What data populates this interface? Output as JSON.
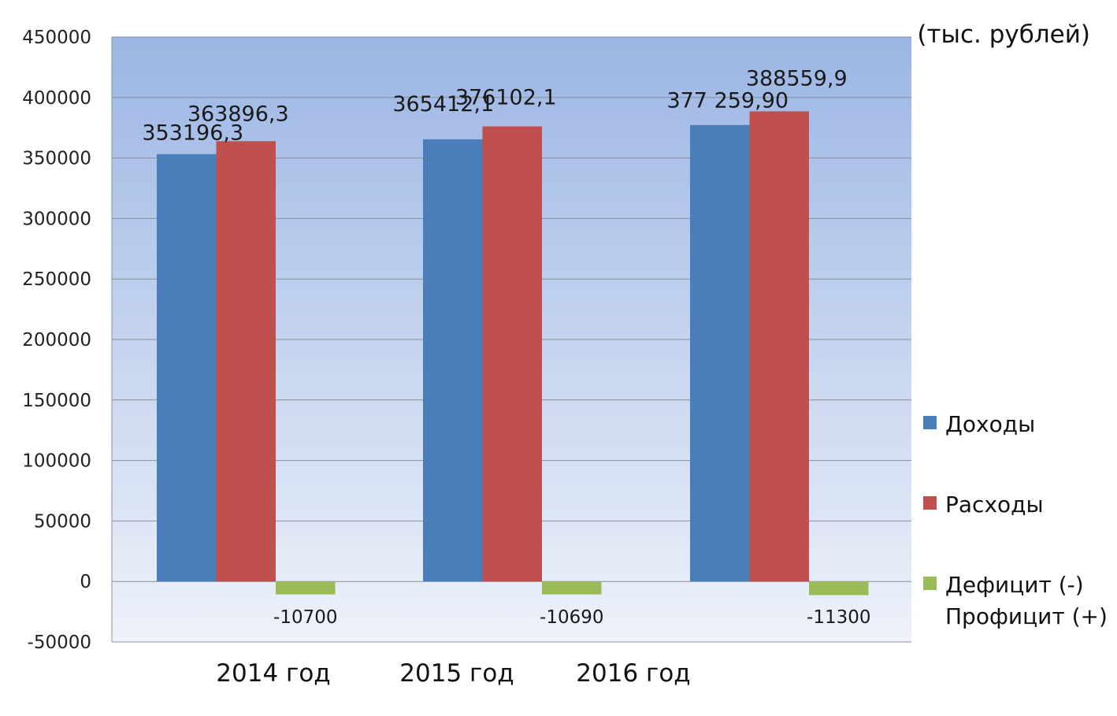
{
  "chart_data": {
    "type": "bar",
    "unit_label": "(тыс. рублей)",
    "categories": [
      "2014 год",
      "2015 год",
      "2016 год"
    ],
    "series": [
      {
        "name": "Доходы",
        "color": "#4a7ebb",
        "values": [
          353196.3,
          365412.1,
          377259.9
        ],
        "labels": [
          "353196,3",
          "365412,1",
          "377 259,90"
        ]
      },
      {
        "name": "Расходы",
        "color": "#c0504d",
        "values": [
          363896.3,
          376102.1,
          388559.9
        ],
        "labels": [
          "363896,3",
          "376102,1",
          "388559,9"
        ]
      },
      {
        "name_lines": [
          "Дефицит (-)",
          "Профицит (+)"
        ],
        "color": "#9bbb59",
        "values": [
          -10700,
          -10690,
          -11300
        ],
        "labels": [
          "-10700",
          "-10690",
          "-11300"
        ]
      }
    ],
    "ylim": [
      -50000,
      450000
    ],
    "yticks": [
      "450000",
      "400000",
      "350000",
      "300000",
      "250000",
      "200000",
      "150000",
      "100000",
      "50000",
      "0",
      "-50000"
    ],
    "grid": true,
    "legend_position": "right"
  }
}
